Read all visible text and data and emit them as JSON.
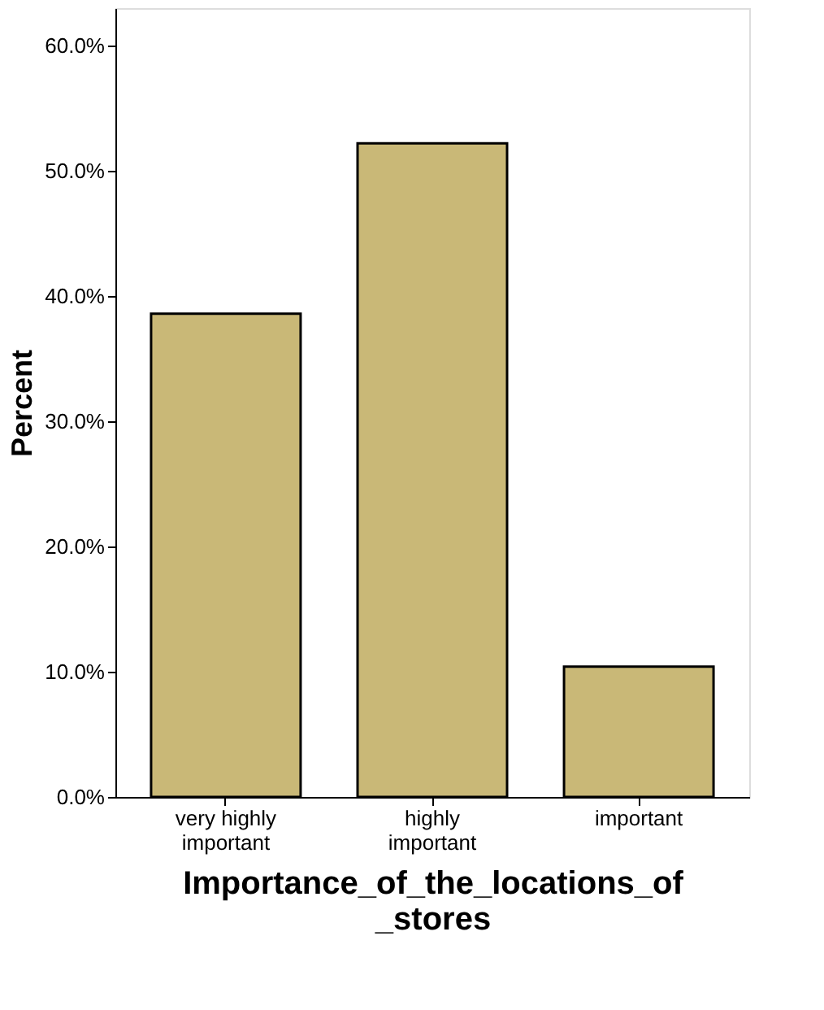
{
  "chart_data": {
    "type": "bar",
    "categories": [
      "very highly\nimportant",
      "highly\nimportant",
      "important"
    ],
    "values": [
      38.6,
      52.2,
      10.4
    ],
    "color": "#c9b877",
    "xlabel": "Importance_of_the_locations_of\n_stores",
    "ylabel": "Percent",
    "ylim": [
      0,
      63
    ],
    "yticks": [
      {
        "value": 0,
        "label": "0.0%"
      },
      {
        "value": 10,
        "label": "10.0%"
      },
      {
        "value": 20,
        "label": "20.0%"
      },
      {
        "value": 30,
        "label": "30.0%"
      },
      {
        "value": 40,
        "label": "40.0%"
      },
      {
        "value": 50,
        "label": "50.0%"
      },
      {
        "value": 60,
        "label": "60.0%"
      }
    ],
    "grid": false
  }
}
